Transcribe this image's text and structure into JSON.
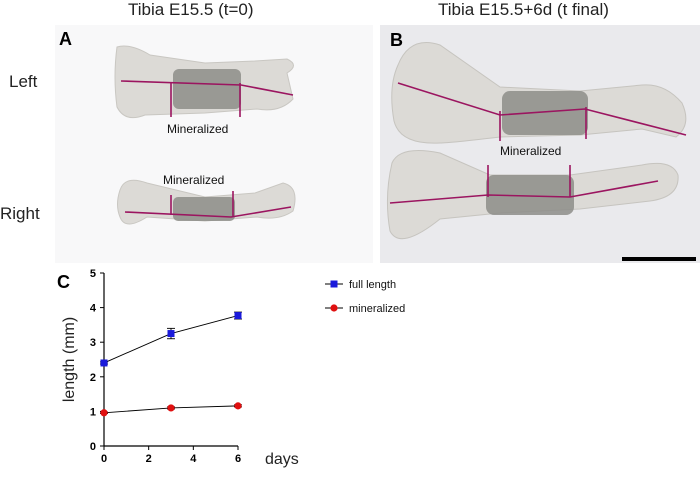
{
  "columns": {
    "left_title": "Tibia E15.5 (t=0)",
    "right_title": "Tibia E15.5+6d (t final)"
  },
  "rows": {
    "left": "Left",
    "right": "Right"
  },
  "panels": {
    "a": {
      "letter": "A",
      "label_upper": "Mineralized",
      "label_lower": "Mineralized"
    },
    "b": {
      "letter": "B",
      "label": "Mineralized",
      "has_scale_bar": true
    },
    "c": {
      "letter": "C"
    }
  },
  "colors": {
    "measure_line": "#9b1560",
    "full_length": "#1a1adb",
    "mineralized": "#e01010",
    "bone": "#dedcd8",
    "mineral_zone": "#8a8a84"
  },
  "chart_data": {
    "type": "line",
    "xlabel": "days",
    "ylabel": "length (mm)",
    "xlim": [
      0,
      6
    ],
    "ylim": [
      0,
      5
    ],
    "x_ticks": [
      "0",
      "2",
      "4",
      "6"
    ],
    "y_ticks": [
      "0",
      "1",
      "2",
      "3",
      "4",
      "5"
    ],
    "grid": false,
    "legend_position": "top-right",
    "series": [
      {
        "name": "full length",
        "marker": "square",
        "color": "#1a1adb",
        "x": [
          0,
          3,
          6
        ],
        "y": [
          2.4,
          3.25,
          3.77
        ],
        "error": [
          0.03,
          0.15,
          0.1
        ]
      },
      {
        "name": "mineralized",
        "marker": "circle",
        "color": "#e01010",
        "x": [
          0,
          3,
          6
        ],
        "y": [
          0.96,
          1.1,
          1.16
        ],
        "error": [
          0.02,
          0.03,
          0.03
        ]
      }
    ]
  }
}
